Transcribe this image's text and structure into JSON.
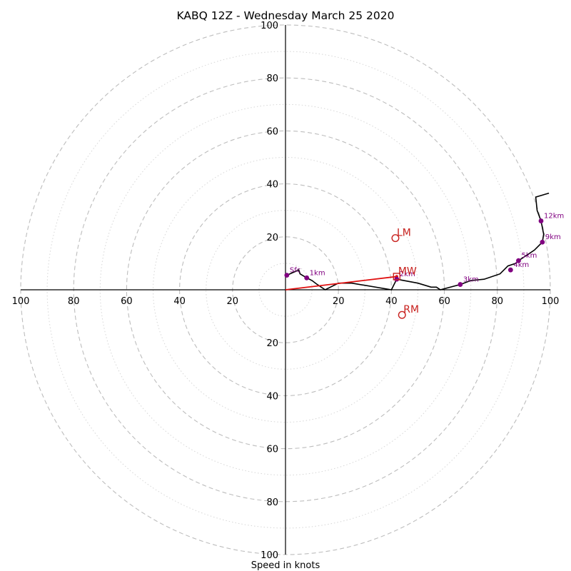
{
  "chart_data": {
    "type": "hodograph",
    "title": "KABQ 12Z - Wednesday March 25 2020",
    "xlabel": "Speed in knots",
    "units": "knots",
    "range": [
      -100,
      100
    ],
    "ring_major_step": 20,
    "ring_minor_step": 10,
    "ring_labels": [
      "20",
      "40",
      "60",
      "80",
      "100"
    ],
    "grid": true,
    "hodograph_trace": [
      [
        0.5,
        5.5
      ],
      [
        5,
        7.5
      ],
      [
        5.5,
        6
      ],
      [
        8,
        4.5
      ],
      [
        10,
        3.5
      ],
      [
        12,
        2
      ],
      [
        15,
        0
      ],
      [
        20,
        2.5
      ],
      [
        25,
        2.5
      ],
      [
        40,
        0
      ],
      [
        42,
        4
      ],
      [
        50,
        2.5
      ],
      [
        55,
        1
      ],
      [
        57,
        1
      ],
      [
        58.5,
        0
      ],
      [
        66,
        2
      ],
      [
        70,
        3.5
      ],
      [
        75,
        4
      ],
      [
        81,
        6
      ],
      [
        83,
        8
      ],
      [
        84,
        9
      ],
      [
        87,
        10
      ],
      [
        88,
        11
      ],
      [
        94,
        15
      ],
      [
        97,
        18
      ],
      [
        97.5,
        21
      ],
      [
        96.5,
        26
      ],
      [
        95,
        30
      ],
      [
        94.5,
        35
      ],
      [
        99.5,
        36.5
      ]
    ],
    "height_markers": [
      {
        "label": "Sfc",
        "u": 0.5,
        "v": 5.5
      },
      {
        "label": "1km",
        "u": 8,
        "v": 4.5
      },
      {
        "label": "2km",
        "u": 42,
        "v": 4
      },
      {
        "label": "3km",
        "u": 66,
        "v": 2
      },
      {
        "label": "4km",
        "u": 85,
        "v": 7.5
      },
      {
        "label": "5km",
        "u": 88,
        "v": 11
      },
      {
        "label": "9km",
        "u": 97,
        "v": 18
      },
      {
        "label": "12km",
        "u": 96.5,
        "v": 26
      }
    ],
    "storm_motion": [
      {
        "label": "LM",
        "u": 41.5,
        "v": 19.5,
        "marker": "circle"
      },
      {
        "label": "MW",
        "u": 42,
        "v": 5,
        "marker": "square"
      },
      {
        "label": "RM",
        "u": 44,
        "v": -9.5,
        "marker": "circle"
      }
    ],
    "mean_wind_vector": {
      "from": [
        0,
        0
      ],
      "to": [
        42,
        5
      ]
    },
    "colors": {
      "trace": "#000000",
      "height_markers": "#800080",
      "storm_motion": "#c8211e",
      "mean_wind_vector": "#e01010",
      "grid": "#bdbdbd"
    }
  }
}
